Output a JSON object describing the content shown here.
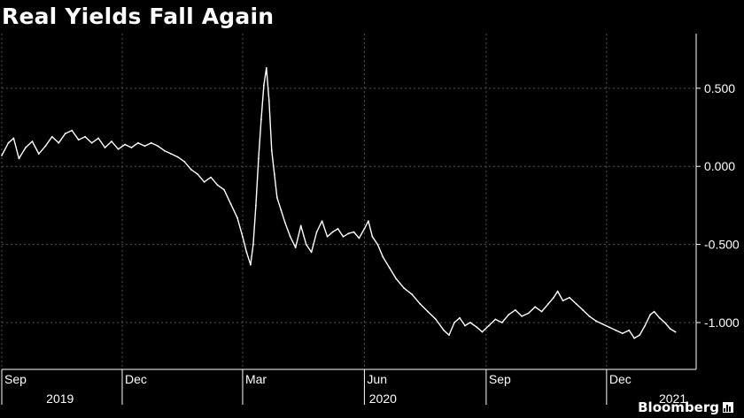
{
  "chart_data": {
    "type": "line",
    "title": "Real Yields Fall Again",
    "ylim": [
      -1.3,
      0.85
    ],
    "yticks": [
      0.5,
      0.0,
      -0.5,
      -1.0
    ],
    "ytick_labels": [
      "0.500",
      "0.000",
      "-0.500",
      "-1.000"
    ],
    "grid": true,
    "xtick_labels": [
      {
        "label": "Sep",
        "date": "2019-09-01"
      },
      {
        "label": "Dec",
        "date": "2019-12-01"
      },
      {
        "label": "Mar",
        "date": "2020-03-01"
      },
      {
        "label": "Jun",
        "date": "2020-06-01"
      },
      {
        "label": "Sep",
        "date": "2020-09-01"
      },
      {
        "label": "Dec",
        "date": "2020-12-01"
      }
    ],
    "year_labels": [
      {
        "label": "2019",
        "date": "2019-10-15"
      },
      {
        "label": "2020",
        "date": "2020-06-15"
      },
      {
        "label": "2021",
        "date": "2021-01-20"
      }
    ],
    "x_start": "2019-09-01",
    "x_end": "2021-01-31",
    "series": [
      {
        "name": "",
        "points": [
          [
            "2019-09-01",
            0.07
          ],
          [
            "2019-09-06",
            0.15
          ],
          [
            "2019-09-10",
            0.18
          ],
          [
            "2019-09-14",
            0.05
          ],
          [
            "2019-09-19",
            0.12
          ],
          [
            "2019-09-24",
            0.16
          ],
          [
            "2019-09-29",
            0.08
          ],
          [
            "2019-10-04",
            0.13
          ],
          [
            "2019-10-09",
            0.19
          ],
          [
            "2019-10-14",
            0.15
          ],
          [
            "2019-10-19",
            0.21
          ],
          [
            "2019-10-24",
            0.23
          ],
          [
            "2019-10-29",
            0.17
          ],
          [
            "2019-11-03",
            0.19
          ],
          [
            "2019-11-08",
            0.15
          ],
          [
            "2019-11-13",
            0.18
          ],
          [
            "2019-11-18",
            0.12
          ],
          [
            "2019-11-23",
            0.16
          ],
          [
            "2019-11-28",
            0.11
          ],
          [
            "2019-12-03",
            0.14
          ],
          [
            "2019-12-08",
            0.12
          ],
          [
            "2019-12-13",
            0.15
          ],
          [
            "2019-12-18",
            0.13
          ],
          [
            "2019-12-23",
            0.15
          ],
          [
            "2019-12-28",
            0.13
          ],
          [
            "2020-01-02",
            0.1
          ],
          [
            "2020-01-07",
            0.08
          ],
          [
            "2020-01-12",
            0.06
          ],
          [
            "2020-01-17",
            0.03
          ],
          [
            "2020-01-22",
            -0.02
          ],
          [
            "2020-01-27",
            -0.05
          ],
          [
            "2020-02-01",
            -0.1
          ],
          [
            "2020-02-06",
            -0.07
          ],
          [
            "2020-02-11",
            -0.12
          ],
          [
            "2020-02-16",
            -0.15
          ],
          [
            "2020-02-21",
            -0.24
          ],
          [
            "2020-02-26",
            -0.33
          ],
          [
            "2020-03-01",
            -0.45
          ],
          [
            "2020-03-04",
            -0.55
          ],
          [
            "2020-03-07",
            -0.63
          ],
          [
            "2020-03-09",
            -0.5
          ],
          [
            "2020-03-11",
            -0.25
          ],
          [
            "2020-03-13",
            0.05
          ],
          [
            "2020-03-15",
            0.3
          ],
          [
            "2020-03-17",
            0.52
          ],
          [
            "2020-03-19",
            0.63
          ],
          [
            "2020-03-21",
            0.42
          ],
          [
            "2020-03-23",
            0.1
          ],
          [
            "2020-03-25",
            -0.05
          ],
          [
            "2020-03-27",
            -0.2
          ],
          [
            "2020-03-30",
            -0.28
          ],
          [
            "2020-04-02",
            -0.36
          ],
          [
            "2020-04-06",
            -0.45
          ],
          [
            "2020-04-10",
            -0.52
          ],
          [
            "2020-04-14",
            -0.38
          ],
          [
            "2020-04-18",
            -0.5
          ],
          [
            "2020-04-22",
            -0.55
          ],
          [
            "2020-04-26",
            -0.42
          ],
          [
            "2020-04-30",
            -0.35
          ],
          [
            "2020-05-04",
            -0.45
          ],
          [
            "2020-05-08",
            -0.42
          ],
          [
            "2020-05-12",
            -0.4
          ],
          [
            "2020-05-16",
            -0.45
          ],
          [
            "2020-05-20",
            -0.43
          ],
          [
            "2020-05-24",
            -0.42
          ],
          [
            "2020-05-28",
            -0.46
          ],
          [
            "2020-06-01",
            -0.4
          ],
          [
            "2020-06-04",
            -0.35
          ],
          [
            "2020-06-07",
            -0.45
          ],
          [
            "2020-06-11",
            -0.5
          ],
          [
            "2020-06-15",
            -0.58
          ],
          [
            "2020-06-20",
            -0.65
          ],
          [
            "2020-06-25",
            -0.72
          ],
          [
            "2020-07-01",
            -0.78
          ],
          [
            "2020-07-07",
            -0.82
          ],
          [
            "2020-07-13",
            -0.88
          ],
          [
            "2020-07-19",
            -0.93
          ],
          [
            "2020-07-25",
            -0.98
          ],
          [
            "2020-07-31",
            -1.05
          ],
          [
            "2020-08-04",
            -1.08
          ],
          [
            "2020-08-08",
            -1.0
          ],
          [
            "2020-08-12",
            -0.97
          ],
          [
            "2020-08-16",
            -1.02
          ],
          [
            "2020-08-20",
            -1.0
          ],
          [
            "2020-08-25",
            -1.03
          ],
          [
            "2020-08-29",
            -1.06
          ],
          [
            "2020-09-03",
            -1.02
          ],
          [
            "2020-09-08",
            -0.98
          ],
          [
            "2020-09-13",
            -1.0
          ],
          [
            "2020-09-18",
            -0.95
          ],
          [
            "2020-09-23",
            -0.92
          ],
          [
            "2020-09-28",
            -0.96
          ],
          [
            "2020-10-03",
            -0.94
          ],
          [
            "2020-10-08",
            -0.9
          ],
          [
            "2020-10-13",
            -0.93
          ],
          [
            "2020-10-18",
            -0.88
          ],
          [
            "2020-10-22",
            -0.84
          ],
          [
            "2020-10-25",
            -0.8
          ],
          [
            "2020-10-29",
            -0.86
          ],
          [
            "2020-11-03",
            -0.84
          ],
          [
            "2020-11-08",
            -0.88
          ],
          [
            "2020-11-13",
            -0.92
          ],
          [
            "2020-11-18",
            -0.96
          ],
          [
            "2020-11-23",
            -0.99
          ],
          [
            "2020-11-28",
            -1.01
          ],
          [
            "2020-12-03",
            -1.03
          ],
          [
            "2020-12-08",
            -1.05
          ],
          [
            "2020-12-13",
            -1.07
          ],
          [
            "2020-12-18",
            -1.05
          ],
          [
            "2020-12-22",
            -1.1
          ],
          [
            "2020-12-26",
            -1.08
          ],
          [
            "2020-12-30",
            -1.02
          ],
          [
            "2021-01-03",
            -0.95
          ],
          [
            "2021-01-06",
            -0.93
          ],
          [
            "2021-01-10",
            -0.97
          ],
          [
            "2021-01-14",
            -1.0
          ],
          [
            "2021-01-18",
            -1.04
          ],
          [
            "2021-01-22",
            -1.06
          ]
        ]
      }
    ]
  },
  "brand": {
    "name": "Bloomberg"
  },
  "colors": {
    "background": "#000000",
    "line": "#ffffff",
    "grid": "#555555"
  }
}
